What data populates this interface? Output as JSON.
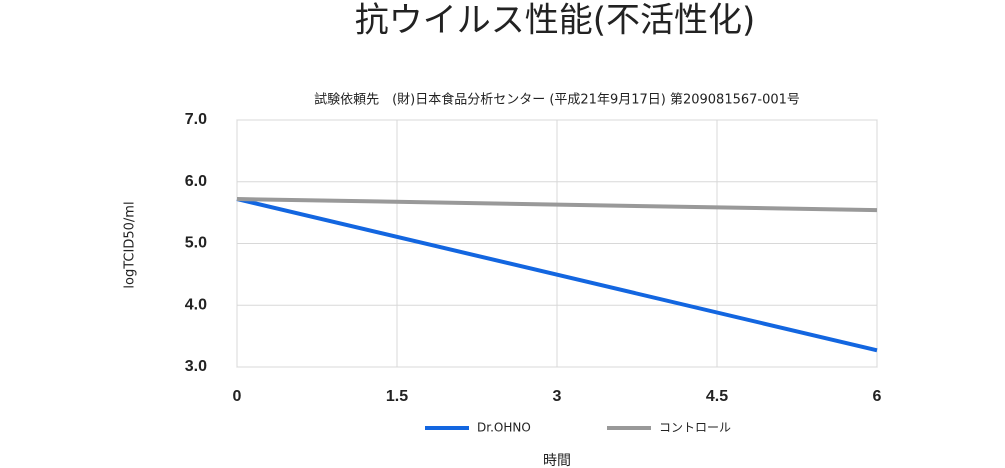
{
  "chart_data": {
    "type": "line",
    "title": "抗ウイルス性能(不活性化)",
    "subtitle": "試験依頼先　(財)日本食品分析センター (平成21年9月17日) 第209081567-001号",
    "x_label": "時間",
    "y_label": "logTCID50/ml",
    "x": [
      0,
      6
    ],
    "series": [
      {
        "name": "Dr.OHNO",
        "color": "#1366e0",
        "values": [
          5.72,
          3.27
        ]
      },
      {
        "name": "コントロール",
        "color": "#999999",
        "values": [
          5.72,
          5.54
        ]
      }
    ],
    "xlim": [
      0,
      6
    ],
    "xticks": [
      0,
      1.5,
      3,
      4.5,
      6
    ],
    "ylim": [
      3,
      7
    ],
    "yticks": [
      {
        "value": 3,
        "label": "3.0"
      },
      {
        "value": 4,
        "label": "4.0"
      },
      {
        "value": 5,
        "label": "5.0"
      },
      {
        "value": 6,
        "label": "6.0"
      },
      {
        "value": 7,
        "label": "7.0"
      }
    ],
    "grid": true,
    "legend": "bottom"
  }
}
